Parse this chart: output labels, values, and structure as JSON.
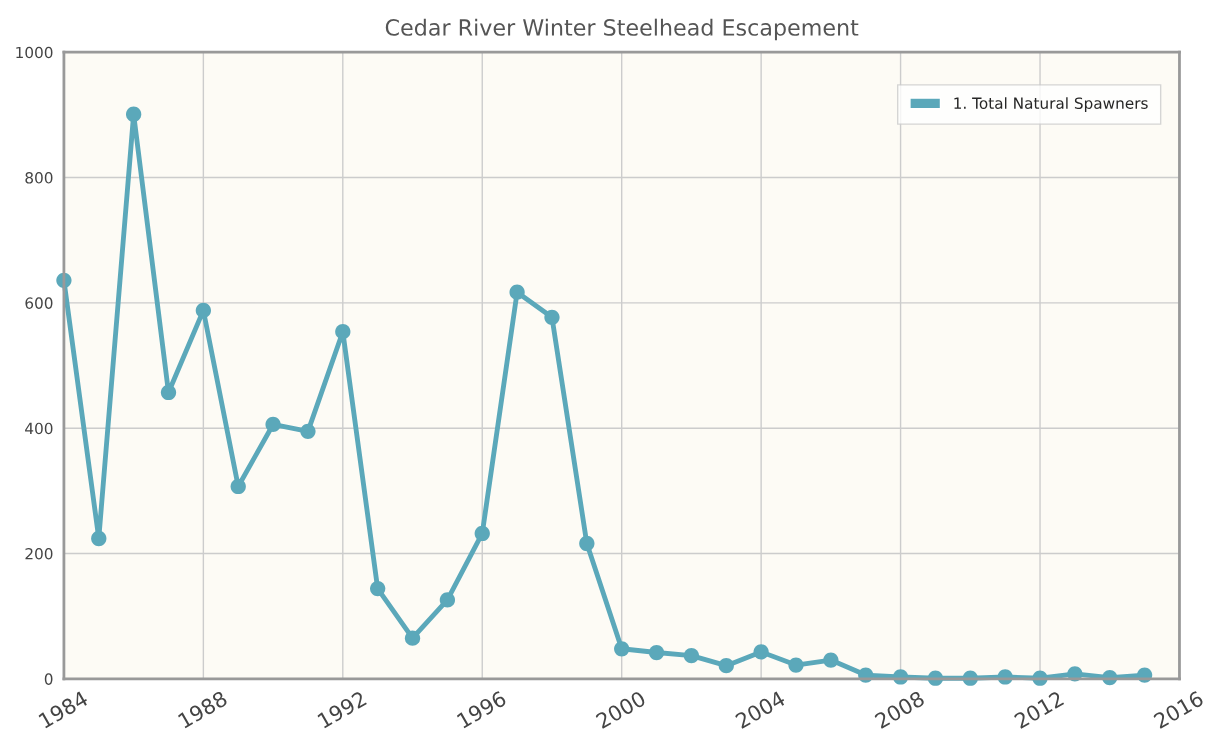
{
  "chart_data": {
    "type": "line",
    "title": "Cedar River Winter Steelhead Escapement",
    "x": [
      1984,
      1985,
      1986,
      1987,
      1988,
      1989,
      1990,
      1991,
      1992,
      1993,
      1994,
      1995,
      1996,
      1997,
      1998,
      1999,
      2000,
      2001,
      2002,
      2003,
      2004,
      2005,
      2006,
      2007,
      2008,
      2009,
      2010,
      2011,
      2012,
      2013,
      2014,
      2015
    ],
    "series": [
      {
        "name": "1. Total Natural Spawners",
        "color": "#5ba8ba",
        "values": [
          636,
          224,
          901,
          457,
          588,
          307,
          406,
          395,
          554,
          144,
          65,
          126,
          232,
          617,
          577,
          216,
          48,
          42,
          37,
          21,
          43,
          22,
          30,
          6,
          3,
          1,
          1,
          3,
          1,
          8,
          2,
          6
        ]
      }
    ],
    "xlim": [
      1984,
      2016
    ],
    "xticks": [
      1984,
      1988,
      1992,
      1996,
      2000,
      2004,
      2008,
      2012,
      2016
    ],
    "ylim": [
      0,
      1000
    ],
    "yticks": [
      0,
      200,
      400,
      600,
      800,
      1000
    ],
    "grid": true,
    "legend": "top right",
    "marker": "circle",
    "line_style": "solid"
  }
}
